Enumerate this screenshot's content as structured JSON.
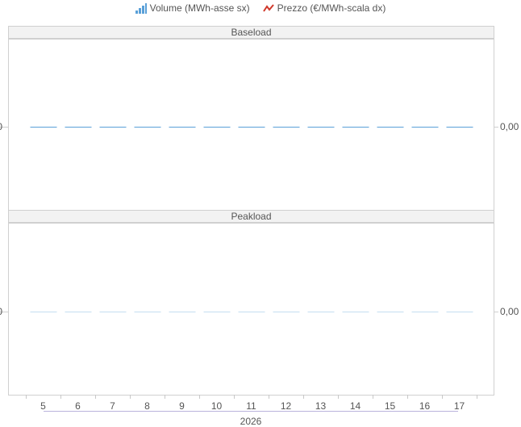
{
  "legend": {
    "volume_label": "Volume (MWh-asse sx)",
    "price_label": "Prezzo (€/MWh-scala dx)"
  },
  "colors": {
    "volume": "#5aa0d8",
    "price": "#d0392b",
    "panel_header_bg": "#f2f2f2",
    "border": "#d0d0d0"
  },
  "chart_data": {
    "type": "bar",
    "categories": [
      "5",
      "6",
      "7",
      "8",
      "9",
      "10",
      "11",
      "12",
      "13",
      "14",
      "15",
      "16",
      "17"
    ],
    "xlabel": "2026",
    "panels": [
      {
        "title": "Baseload",
        "series": [
          {
            "name": "Volume (MWh-asse sx)",
            "axis": "left",
            "values": [
              0,
              0,
              0,
              0,
              0,
              0,
              0,
              0,
              0,
              0,
              0,
              0,
              0
            ]
          },
          {
            "name": "Prezzo (€/MWh-scala dx)",
            "axis": "right",
            "values": [
              0,
              0,
              0,
              0,
              0,
              0,
              0,
              0,
              0,
              0,
              0,
              0,
              0
            ]
          }
        ],
        "left_tick": "0",
        "right_tick": "0,00"
      },
      {
        "title": "Peakload",
        "series": [
          {
            "name": "Volume (MWh-asse sx)",
            "axis": "left",
            "values": [
              0,
              0,
              0,
              0,
              0,
              0,
              0,
              0,
              0,
              0,
              0,
              0,
              0
            ]
          },
          {
            "name": "Prezzo (€/MWh-scala dx)",
            "axis": "right",
            "values": [
              0,
              0,
              0,
              0,
              0,
              0,
              0,
              0,
              0,
              0,
              0,
              0,
              0
            ]
          }
        ],
        "left_tick": "0",
        "right_tick": "0,00"
      }
    ]
  }
}
